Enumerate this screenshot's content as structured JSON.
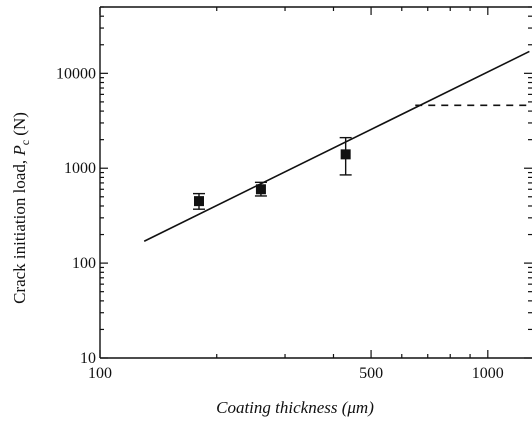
{
  "chart_data": {
    "type": "scatter",
    "title": "",
    "xlabel": "Coating thickness (μm)",
    "ylabel_parts": [
      "Crack initiation load, ",
      "P",
      "c",
      " (N)"
    ],
    "x_scale": "log",
    "y_scale": "log",
    "xlim": [
      100,
      1300
    ],
    "ylim": [
      10,
      50000
    ],
    "x_ticks": [
      {
        "value": 100,
        "label": "100"
      },
      {
        "value": 500,
        "label": "500"
      },
      {
        "value": 1000,
        "label": "1000"
      }
    ],
    "y_ticks": [
      {
        "value": 10,
        "label": "10"
      },
      {
        "value": 100,
        "label": "100"
      },
      {
        "value": 1000,
        "label": "1000"
      },
      {
        "value": 10000,
        "label": "10000"
      }
    ],
    "grid": false,
    "series": [
      {
        "type": "scatter",
        "marker": "square",
        "points": [
          {
            "x": 180,
            "y": 450,
            "y_low": 370,
            "y_high": 540
          },
          {
            "x": 260,
            "y": 600,
            "y_low": 510,
            "y_high": 710
          },
          {
            "x": 430,
            "y": 1400,
            "y_low": 850,
            "y_high": 2100
          }
        ]
      },
      {
        "type": "line",
        "style": "solid",
        "x": [
          130,
          1280
        ],
        "y": [
          170,
          17000
        ]
      },
      {
        "type": "line",
        "style": "dashed",
        "x": [
          650,
          1300
        ],
        "y": [
          4600,
          4600
        ]
      }
    ]
  }
}
